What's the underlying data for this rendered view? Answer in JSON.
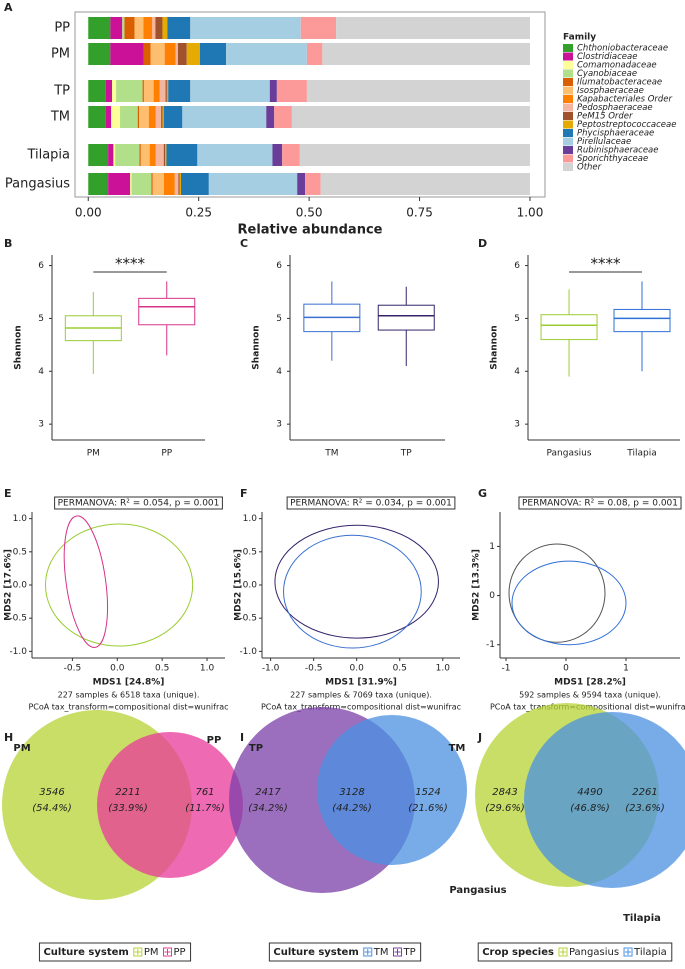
{
  "chart_data": [
    {
      "type": "stackedbar",
      "panel": "A",
      "xlabel": "Relative abundance",
      "legend_title": "Family",
      "categories": [
        "PP",
        "PM",
        "TP",
        "TM",
        "Tilapia",
        "Pangasius"
      ],
      "xlim": [
        -0.03,
        1.034
      ],
      "xticks": [
        {
          "value": 0,
          "label": "0.00"
        },
        {
          "value": 0.25,
          "label": "0.25"
        },
        {
          "value": 0.5,
          "label": "0.50"
        },
        {
          "value": 0.75,
          "label": "0.75"
        },
        {
          "value": 1,
          "label": "1.00"
        }
      ],
      "series": [
        {
          "name": "Chthoniobacteraceae",
          "color": "#33a02c",
          "values": [
            0.05,
            0.05,
            0.04,
            0.04,
            0.045,
            0.045
          ]
        },
        {
          "name": "Clostridiaceae",
          "color": "#cc1199",
          "values": [
            0.027,
            0.075,
            0.014,
            0.012,
            0.012,
            0.05
          ]
        },
        {
          "name": "Comamonadaceae",
          "color": "#ffff99",
          "values": [
            0,
            0,
            0.009,
            0.02,
            0.004,
            0.003
          ]
        },
        {
          "name": "Cyanobiaceae",
          "color": "#b2df8a",
          "values": [
            0.005,
            0,
            0.06,
            0.04,
            0.055,
            0.045
          ]
        },
        {
          "name": "Ilumatobacteraceae",
          "color": "#d95f02",
          "values": [
            0.023,
            0.016,
            0.003,
            0.003,
            0.003,
            0.003
          ]
        },
        {
          "name": "Isosphaeraceae",
          "color": "#fdbf6f",
          "values": [
            0.02,
            0.032,
            0.022,
            0.022,
            0.02,
            0.025
          ]
        },
        {
          "name": "Kapabacteriales Order",
          "color": "#ff7f00",
          "values": [
            0.02,
            0.025,
            0.014,
            0.016,
            0.014,
            0.025
          ]
        },
        {
          "name": "Pedosphaeraceae",
          "color": "#f4b6a0",
          "values": [
            0.007,
            0.005,
            0.013,
            0.012,
            0.018,
            0.008
          ]
        },
        {
          "name": "PeM15 Order",
          "color": "#a0522d",
          "values": [
            0.016,
            0.02,
            0.003,
            0.003,
            0.003,
            0.003
          ]
        },
        {
          "name": "Peptostreptococcaceae",
          "color": "#e6ab02",
          "values": [
            0.011,
            0.03,
            0.003,
            0.003,
            0.003,
            0.003
          ]
        },
        {
          "name": "Phycisphaeraceae",
          "color": "#1f78b4",
          "values": [
            0.052,
            0.059,
            0.05,
            0.042,
            0.07,
            0.063
          ]
        },
        {
          "name": "Pirellulaceae",
          "color": "#a6cee3",
          "values": [
            0.25,
            0.183,
            0.18,
            0.19,
            0.17,
            0.2
          ]
        },
        {
          "name": "Rubinisphaeraceae",
          "color": "#6a3d9a",
          "values": [
            0,
            0,
            0.016,
            0.018,
            0.022,
            0.018
          ]
        },
        {
          "name": "Sporichthyaceae",
          "color": "#fb9a99",
          "values": [
            0.08,
            0.035,
            0.068,
            0.04,
            0.04,
            0.035
          ]
        },
        {
          "name": "Other",
          "color": "#d3d3d3",
          "values": [
            0.439,
            0.47,
            0.505,
            0.539,
            0.521,
            0.474
          ]
        }
      ]
    },
    {
      "type": "box",
      "panel": "B",
      "ylabel": "Shannon",
      "annotation": "****",
      "categories": [
        "PM",
        "PP"
      ],
      "colors": [
        "#9acd32",
        "#d6338a"
      ],
      "ylim": [
        2.7,
        6.2
      ],
      "yticks": [
        3,
        4,
        5,
        6
      ],
      "boxes": [
        {
          "low": 3.95,
          "q1": 4.58,
          "median": 4.82,
          "q3": 5.05,
          "high": 5.5
        },
        {
          "low": 4.3,
          "q1": 4.88,
          "median": 5.22,
          "q3": 5.38,
          "high": 5.7
        }
      ]
    },
    {
      "type": "box",
      "panel": "C",
      "ylabel": "Shannon",
      "categories": [
        "TM",
        "TP"
      ],
      "colors": [
        "#3a6fd0",
        "#35236b"
      ],
      "ylim": [
        2.7,
        6.2
      ],
      "yticks": [
        3,
        4,
        5,
        6
      ],
      "boxes": [
        {
          "low": 4.2,
          "q1": 4.75,
          "median": 5.02,
          "q3": 5.27,
          "high": 5.7
        },
        {
          "low": 4.1,
          "q1": 4.78,
          "median": 5.05,
          "q3": 5.25,
          "high": 5.6
        }
      ]
    },
    {
      "type": "box",
      "panel": "D",
      "ylabel": "Shannon",
      "annotation": "****",
      "categories": [
        "Pangasius",
        "Tilapia"
      ],
      "colors": [
        "#9acd32",
        "#2e6fd8"
      ],
      "ylim": [
        2.7,
        6.2
      ],
      "yticks": [
        3,
        4,
        5,
        6
      ],
      "boxes": [
        {
          "low": 3.9,
          "q1": 4.6,
          "median": 4.87,
          "q3": 5.07,
          "high": 5.55
        },
        {
          "low": 4.0,
          "q1": 4.75,
          "median": 5.0,
          "q3": 5.17,
          "high": 5.7
        }
      ]
    },
    {
      "type": "ordination",
      "panel": "E",
      "annotation": "PERMANOVA: R² = 0.054, p = 0.001",
      "xlabel": "MDS1 [24.8%]",
      "ylabel": "MDS2 [17.6%]",
      "caption": [
        "227 samples & 6518 taxa (unique).",
        "PCoA tax_transform=compositional dist=wunifrac"
      ],
      "xlim": [
        -0.95,
        1.2
      ],
      "ylim": [
        -1.1,
        1.1
      ],
      "xticks": [
        -0.5,
        {
          "value": 0,
          "label": "0.0"
        },
        0.5,
        {
          "value": 1,
          "label": "1.0"
        }
      ],
      "yticks": [
        {
          "value": -1,
          "label": "-1.0"
        },
        -0.5,
        {
          "value": 0,
          "label": "0.0"
        },
        0.5,
        {
          "value": 1,
          "label": "1.0"
        }
      ],
      "ellipses": [
        {
          "color": "#9acd32",
          "cx": 0.02,
          "cy": 0.0,
          "rx": 0.82,
          "ry": 0.92,
          "angle": 0
        },
        {
          "color": "#d6338a",
          "cx": -0.35,
          "cy": 0.05,
          "rx": 0.22,
          "ry": 1.0,
          "angle": 8
        }
      ]
    },
    {
      "type": "ordination",
      "panel": "F",
      "annotation": "PERMANOVA: R² = 0.034, p = 0.001",
      "xlabel": "MDS1 [31.9%]",
      "ylabel": "MDS2 [15.6%]",
      "caption": [
        "227 samples & 7069 taxa (unique).",
        "PCoA tax_transform=compositional dist=wunifrac"
      ],
      "xlim": [
        -1.1,
        1.2
      ],
      "ylim": [
        -1.1,
        1.1
      ],
      "xticks": [
        {
          "value": -1,
          "label": "-1.0"
        },
        -0.5,
        {
          "value": 0,
          "label": "0.0"
        },
        0.5,
        {
          "value": 1,
          "label": "1.0"
        }
      ],
      "yticks": [
        {
          "value": -1,
          "label": "-1.0"
        },
        -0.5,
        {
          "value": 0,
          "label": "0.0"
        },
        0.5,
        {
          "value": 1,
          "label": "1.0"
        }
      ],
      "ellipses": [
        {
          "color": "#35236b",
          "cx": 0.0,
          "cy": 0.05,
          "rx": 0.95,
          "ry": 0.85,
          "angle": 0
        },
        {
          "color": "#3a6fd0",
          "cx": -0.05,
          "cy": -0.1,
          "rx": 0.8,
          "ry": 0.85,
          "angle": 0
        }
      ]
    },
    {
      "type": "ordination",
      "panel": "G",
      "annotation": "PERMANOVA: R² = 0.08, p = 0.001",
      "xlabel": "MDS1 [28.2%]",
      "ylabel": "MDS2 [13.3%]",
      "caption": [
        "592 samples & 9594 taxa (unique).",
        "PCoA tax_transform=compositional dist=wunifrac"
      ],
      "xlim": [
        -1.1,
        1.9
      ],
      "ylim": [
        -1.27,
        1.7
      ],
      "xticks": [
        -1,
        0,
        1
      ],
      "yticks": [
        -1,
        0,
        1
      ],
      "ellipses": [
        {
          "color": "#555555",
          "cx": -0.15,
          "cy": 0.05,
          "rx": 0.8,
          "ry": 1.0,
          "angle": 0
        },
        {
          "color": "#2e6fd8",
          "cx": 0.05,
          "cy": -0.15,
          "rx": 0.95,
          "ry": 0.85,
          "angle": 0
        }
      ]
    },
    {
      "type": "venn",
      "panel": "H",
      "legend_title": "Culture system",
      "sets": [
        {
          "name": "PM",
          "color": "#b5d334"
        },
        {
          "name": "PP",
          "color": "#e8389a"
        }
      ],
      "regions": [
        {
          "count": 3546,
          "percent_label": "(54.4%)"
        },
        {
          "count": 2211,
          "percent_label": "(33.9%)"
        },
        {
          "count": 761,
          "percent_label": "(11.7%)"
        }
      ]
    },
    {
      "type": "venn",
      "panel": "I",
      "legend_title": "Culture system",
      "sets": [
        {
          "name": "TM",
          "color": "#4a90e2"
        },
        {
          "name": "TP",
          "color": "#7b3fa8"
        }
      ],
      "regions": [
        {
          "count": 2417,
          "percent_label": "(34.2%)"
        },
        {
          "count": 3128,
          "percent_label": "(44.2%)"
        },
        {
          "count": 1524,
          "percent_label": "(21.6%)"
        }
      ]
    },
    {
      "type": "venn",
      "panel": "J",
      "legend_title": "Crop species",
      "sets": [
        {
          "name": "Pangasius",
          "color": "#b5d334"
        },
        {
          "name": "Tilapia",
          "color": "#4a90e2"
        }
      ],
      "regions": [
        {
          "count": 2843,
          "percent_label": "(29.6%)"
        },
        {
          "count": 4490,
          "percent_label": "(46.8%)"
        },
        {
          "count": 2261,
          "percent_label": "(23.6%)"
        }
      ]
    }
  ]
}
